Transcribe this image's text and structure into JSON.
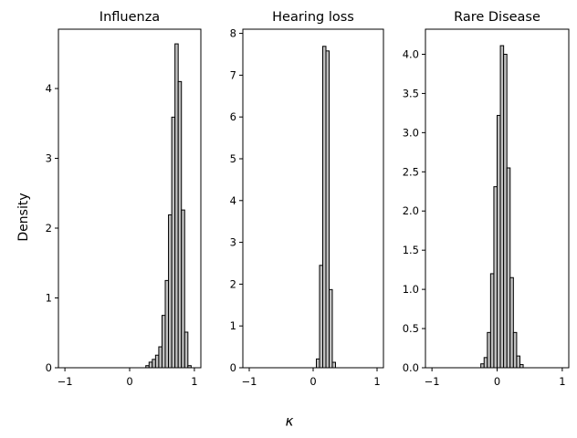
{
  "figure": {
    "ylabel": "Density",
    "xlabel": "κ"
  },
  "chart_data": [
    {
      "type": "bar",
      "title": "Influenza",
      "xlim": [
        -1.1,
        1.1
      ],
      "ylim": [
        0,
        4.85
      ],
      "xticks": [
        -1,
        0,
        1
      ],
      "yticks": [
        0,
        1,
        2,
        3,
        4
      ],
      "bin_width": 0.05,
      "bins": [
        {
          "x": 0.25,
          "h": 0.03
        },
        {
          "x": 0.3,
          "h": 0.08
        },
        {
          "x": 0.35,
          "h": 0.12
        },
        {
          "x": 0.4,
          "h": 0.18
        },
        {
          "x": 0.45,
          "h": 0.3
        },
        {
          "x": 0.5,
          "h": 0.75
        },
        {
          "x": 0.55,
          "h": 1.25
        },
        {
          "x": 0.6,
          "h": 2.19
        },
        {
          "x": 0.65,
          "h": 3.59
        },
        {
          "x": 0.7,
          "h": 4.64
        },
        {
          "x": 0.75,
          "h": 4.1
        },
        {
          "x": 0.8,
          "h": 2.26
        },
        {
          "x": 0.85,
          "h": 0.51
        },
        {
          "x": 0.9,
          "h": 0.03
        }
      ]
    },
    {
      "type": "bar",
      "title": "Hearing loss",
      "xlim": [
        -1.1,
        1.1
      ],
      "ylim": [
        0,
        8.1
      ],
      "xticks": [
        -1,
        0,
        1
      ],
      "yticks": [
        0,
        1,
        2,
        3,
        4,
        5,
        6,
        7,
        8
      ],
      "bin_width": 0.05,
      "bins": [
        {
          "x": 0.05,
          "h": 0.21
        },
        {
          "x": 0.1,
          "h": 2.45
        },
        {
          "x": 0.15,
          "h": 7.69
        },
        {
          "x": 0.2,
          "h": 7.58
        },
        {
          "x": 0.25,
          "h": 1.87
        },
        {
          "x": 0.3,
          "h": 0.13
        }
      ]
    },
    {
      "type": "bar",
      "title": "Rare Disease",
      "xlim": [
        -1.1,
        1.1
      ],
      "ylim": [
        0,
        4.32
      ],
      "xticks": [
        -1,
        0,
        1
      ],
      "yticks": [
        0.0,
        0.5,
        1.0,
        1.5,
        2.0,
        2.5,
        3.0,
        3.5,
        4.0
      ],
      "bin_width": 0.05,
      "bins": [
        {
          "x": -0.25,
          "h": 0.05
        },
        {
          "x": -0.2,
          "h": 0.13
        },
        {
          "x": -0.15,
          "h": 0.45
        },
        {
          "x": -0.1,
          "h": 1.2
        },
        {
          "x": -0.05,
          "h": 2.31
        },
        {
          "x": 0.0,
          "h": 3.22
        },
        {
          "x": 0.05,
          "h": 4.11
        },
        {
          "x": 0.1,
          "h": 4.0
        },
        {
          "x": 0.15,
          "h": 2.55
        },
        {
          "x": 0.2,
          "h": 1.15
        },
        {
          "x": 0.25,
          "h": 0.45
        },
        {
          "x": 0.3,
          "h": 0.15
        },
        {
          "x": 0.35,
          "h": 0.04
        }
      ]
    }
  ]
}
